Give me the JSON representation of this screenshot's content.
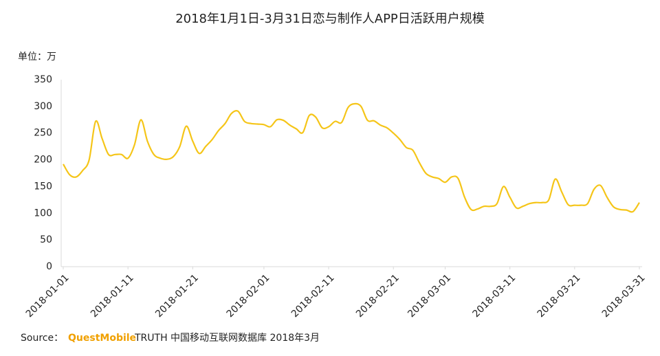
{
  "chart_data": {
    "type": "line",
    "title": "2018年1月1日-3月31日恋与制作人APP日活跃用户规模",
    "y_unit": "单位：万",
    "source": {
      "label": "Source：",
      "brand": "QuestMobile",
      "text": "TRUTH 中国移动互联网数据库 2018年3月"
    },
    "categories": [
      "2018-01-01",
      null,
      null,
      null,
      null,
      null,
      null,
      null,
      null,
      null,
      "2018-01-11",
      null,
      null,
      null,
      null,
      null,
      null,
      null,
      null,
      null,
      "2018-01-21",
      null,
      null,
      null,
      null,
      null,
      null,
      null,
      null,
      null,
      null,
      "2018-02-01",
      null,
      null,
      null,
      null,
      null,
      null,
      null,
      null,
      null,
      "2018-02-11",
      null,
      null,
      null,
      null,
      null,
      null,
      null,
      null,
      null,
      "2018-02-21",
      null,
      null,
      null,
      null,
      null,
      null,
      null,
      "2018-03-01",
      null,
      null,
      null,
      null,
      null,
      null,
      null,
      null,
      null,
      "2018-03-11",
      null,
      null,
      null,
      null,
      null,
      null,
      null,
      null,
      null,
      "2018-03-21",
      null,
      null,
      null,
      null,
      null,
      null,
      null,
      null,
      null,
      "2018-03-31"
    ],
    "series": [
      {
        "name": "日活跃用户规模",
        "color": "#f5c518",
        "values": [
          192,
          172,
          168,
          180,
          200,
          272,
          240,
          210,
          210,
          210,
          203,
          228,
          275,
          235,
          210,
          203,
          201,
          206,
          225,
          263,
          235,
          212,
          225,
          238,
          255,
          268,
          287,
          291,
          272,
          268,
          267,
          266,
          262,
          275,
          274,
          265,
          258,
          251,
          283,
          280,
          260,
          262,
          272,
          270,
          298,
          305,
          300,
          274,
          273,
          265,
          260,
          250,
          238,
          223,
          218,
          195,
          175,
          168,
          165,
          158,
          168,
          165,
          130,
          107,
          108,
          113,
          113,
          118,
          150,
          130,
          110,
          113,
          118,
          120,
          120,
          125,
          164,
          140,
          116,
          115,
          115,
          118,
          145,
          152,
          130,
          112,
          107,
          106,
          103,
          120
        ]
      }
    ],
    "ylim": [
      0,
      350
    ],
    "yticks": [
      0,
      50,
      100,
      150,
      200,
      250,
      300,
      350
    ]
  }
}
